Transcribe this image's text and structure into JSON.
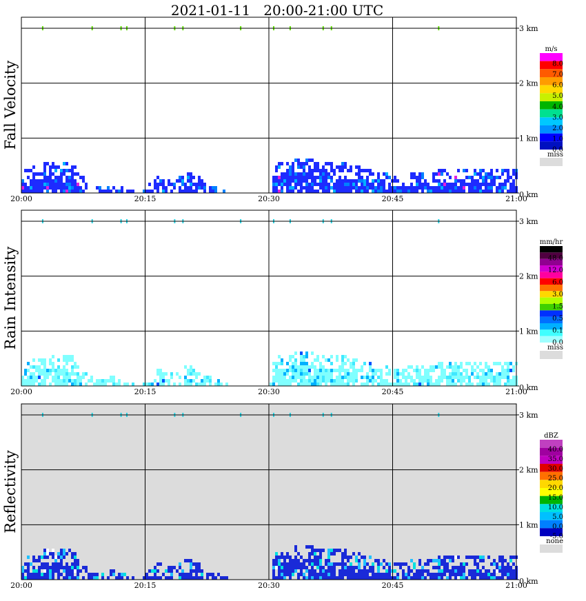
{
  "title": "2021-01-11   20:00-21:00 UTC",
  "x_tick_labels": [
    "20:00",
    "20:15",
    "20:30",
    "20:45",
    "21:00"
  ],
  "y_tick_labels": [
    "0 km",
    "1 km",
    "2 km",
    "3 km"
  ],
  "chart_data": [
    {
      "type": "heatmap",
      "title": "Fall Velocity",
      "ylabel": "Fall Velocity",
      "xlim": [
        "20:00",
        "21:00"
      ],
      "ylim_km": [
        0,
        3.2
      ],
      "grid": true,
      "legend": {
        "unit": "m/s",
        "placement": "right",
        "bins": [
          {
            "color": "#ff00ff"
          },
          {
            "color": "#ff0000"
          },
          {
            "color": "#ff5a00"
          },
          {
            "color": "#ff9c00"
          },
          {
            "color": "#ffd800"
          },
          {
            "color": "#c8f000"
          },
          {
            "color": "#00b400"
          },
          {
            "color": "#00e090"
          },
          {
            "color": "#00c8ff"
          },
          {
            "color": "#0090ff"
          },
          {
            "color": "#0000ff"
          },
          {
            "color": "#0010c0"
          }
        ],
        "labels": [
          "8.0",
          "7.0",
          "6.0",
          "5.0",
          "4.0",
          "3.0",
          "2.0",
          "1.0",
          "0.0"
        ],
        "missing_label": "miss",
        "missing_color": "#dcdcdc"
      },
      "dominant_color": "#1e2bff",
      "secondary_colors": [
        "#0080ff",
        "#00b0ff",
        "#e020e0"
      ],
      "background": "#ffffff",
      "echo_profile_km": [
        {
          "t": 0,
          "top": 0.45
        },
        {
          "t": 2,
          "top": 0.55
        },
        {
          "t": 4,
          "top": 0.6
        },
        {
          "t": 6,
          "top": 0.6
        },
        {
          "t": 7,
          "top": 0.35
        },
        {
          "t": 9,
          "top": 0.15
        },
        {
          "t": 11,
          "top": 0.2
        },
        {
          "t": 13,
          "top": 0.1
        },
        {
          "t": 14,
          "top": 0.0
        },
        {
          "t": 16.5,
          "top": 0.35
        },
        {
          "t": 18,
          "top": 0.25
        },
        {
          "t": 20,
          "top": 0.4
        },
        {
          "t": 22,
          "top": 0.3
        },
        {
          "t": 24,
          "top": 0.1
        },
        {
          "t": 26,
          "top": 0.0
        },
        {
          "t": 30,
          "top": 0.0
        },
        {
          "t": 30.5,
          "top": 0.55
        },
        {
          "t": 33,
          "top": 0.65
        },
        {
          "t": 36,
          "top": 0.62
        },
        {
          "t": 39,
          "top": 0.58
        },
        {
          "t": 42,
          "top": 0.45
        },
        {
          "t": 45,
          "top": 0.35
        },
        {
          "t": 48,
          "top": 0.4
        },
        {
          "t": 51,
          "top": 0.45
        },
        {
          "t": 54,
          "top": 0.5
        },
        {
          "t": 57,
          "top": 0.5
        },
        {
          "t": 60,
          "top": 0.5
        }
      ]
    },
    {
      "type": "heatmap",
      "title": "Rain Intensity",
      "ylabel": "Rain Intensity",
      "xlim": [
        "20:00",
        "21:00"
      ],
      "ylim_km": [
        0,
        3.2
      ],
      "grid": true,
      "legend": {
        "unit": "mm/hr",
        "placement": "right",
        "bins": [
          {
            "color": "#000000"
          },
          {
            "color": "#500040"
          },
          {
            "color": "#900090"
          },
          {
            "color": "#d000d0"
          },
          {
            "color": "#ff00a0"
          },
          {
            "color": "#ff0000"
          },
          {
            "color": "#ff7000"
          },
          {
            "color": "#ffd800"
          },
          {
            "color": "#b0ff00"
          },
          {
            "color": "#40d000"
          },
          {
            "color": "#0030ff"
          },
          {
            "color": "#0070ff"
          },
          {
            "color": "#00b0ff"
          },
          {
            "color": "#40ffff"
          },
          {
            "color": "#a0ffff"
          }
        ],
        "labels": [
          "48.0",
          "12.0",
          "6.0",
          "3.0",
          "1.5",
          "0.5",
          "0.1",
          "0.0"
        ],
        "missing_label": "miss",
        "missing_color": "#dcdcdc"
      },
      "dominant_color": "#80ffff",
      "secondary_colors": [
        "#40e8ff",
        "#00b0ff",
        "#0050ff"
      ],
      "background": "#ffffff"
    },
    {
      "type": "heatmap",
      "title": "Reflectivity",
      "ylabel": "Reflectivity",
      "xlim": [
        "20:00",
        "21:00"
      ],
      "ylim_km": [
        0,
        3.2
      ],
      "grid": true,
      "legend": {
        "unit": "dBZ",
        "placement": "right",
        "bins": [
          {
            "color": "#c040c0"
          },
          {
            "color": "#a000a0"
          },
          {
            "color": "#c000c0"
          },
          {
            "color": "#e00000"
          },
          {
            "color": "#ff7000"
          },
          {
            "color": "#ffd800"
          },
          {
            "color": "#ffff00"
          },
          {
            "color": "#00b400"
          },
          {
            "color": "#00e0e0"
          },
          {
            "color": "#00c0ff"
          },
          {
            "color": "#0080ff"
          },
          {
            "color": "#0000c0"
          }
        ],
        "labels": [
          "40.0",
          "35.0",
          "30.0",
          "25.0",
          "20.0",
          "15.0",
          "10.0",
          "5.0",
          "0.0",
          "-5.0"
        ],
        "missing_label": "none",
        "missing_color": "#dcdcdc"
      },
      "dominant_color": "#1a2ad8",
      "secondary_colors": [
        "#20c0ff",
        "#00e0e0",
        "#ffffff"
      ],
      "background": "#dcdcdc"
    }
  ],
  "top_markers_minutes": [
    2.5,
    8.5,
    12,
    12.7,
    18.5,
    19.5,
    26.5,
    30.5,
    32.5,
    36.5,
    37.5,
    50.5
  ]
}
